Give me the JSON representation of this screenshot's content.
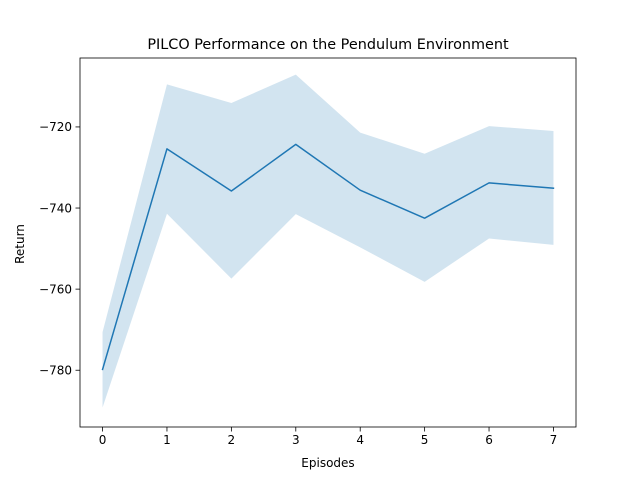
{
  "chart_data": {
    "type": "line",
    "title": "PILCO Performance on the Pendulum Environment",
    "xlabel": "Episodes",
    "ylabel": "Return",
    "x": [
      0,
      1,
      2,
      3,
      4,
      5,
      6,
      7
    ],
    "xlim": [
      -0.35,
      7.35
    ],
    "ylim": [
      -794,
      -703
    ],
    "xticks": [
      "0",
      "1",
      "2",
      "3",
      "4",
      "5",
      "6",
      "7"
    ],
    "yticks": [
      {
        "value": -780,
        "label": "−780"
      },
      {
        "value": -760,
        "label": "−760"
      },
      {
        "value": -740,
        "label": "−740"
      },
      {
        "value": -720,
        "label": "−720"
      }
    ],
    "grid": false,
    "legend": "none",
    "series": [
      {
        "values": [
          -779.8,
          -725.4,
          -735.8,
          -724.3,
          -735.6,
          -742.5,
          -733.8,
          -735.1
        ],
        "band_upper": [
          -770.6,
          -709.5,
          -714.1,
          -707.1,
          -721.4,
          -726.6,
          -719.8,
          -721.0
        ],
        "band_lower": [
          -789.2,
          -741.4,
          -757.4,
          -741.5,
          -749.7,
          -758.2,
          -747.5,
          -749.1
        ],
        "color": "#1f77b4",
        "band_color": "#1f77b4",
        "band_opacity": 0.2
      }
    ]
  }
}
